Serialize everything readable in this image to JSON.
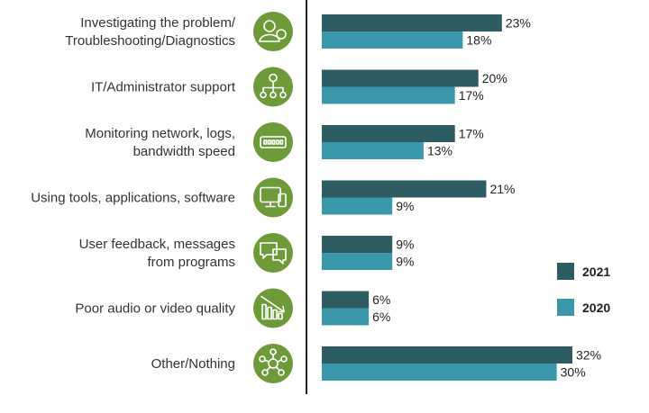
{
  "colors": {
    "series_2021": "#2e5c63",
    "series_2020": "#3a98aa",
    "icon_circle": "#6f9a3a",
    "axis": "#222222"
  },
  "legend": {
    "placement": "right"
  },
  "chart_data": {
    "type": "bar",
    "orientation": "horizontal",
    "categories": [
      "Investigating the problem/\nTroubleshooting/Diagnostics",
      "IT/Administrator support",
      "Monitoring network, logs,\nbandwidth speed",
      "Using tools, applications, software",
      "User feedback, messages\nfrom programs",
      "Poor audio or video quality",
      "Other/Nothing"
    ],
    "icons": [
      "user-diagnostics-icon",
      "org-support-icon",
      "network-monitor-icon",
      "devices-icon",
      "chat-messages-icon",
      "declining-quality-icon",
      "network-nodes-icon"
    ],
    "series": [
      {
        "name": "2021",
        "values": [
          23,
          20,
          17,
          21,
          9,
          6,
          32
        ]
      },
      {
        "name": "2020",
        "values": [
          18,
          17,
          13,
          9,
          9,
          6,
          30
        ]
      }
    ],
    "unit": "%",
    "xlim": [
      0,
      32
    ],
    "grid": false
  }
}
